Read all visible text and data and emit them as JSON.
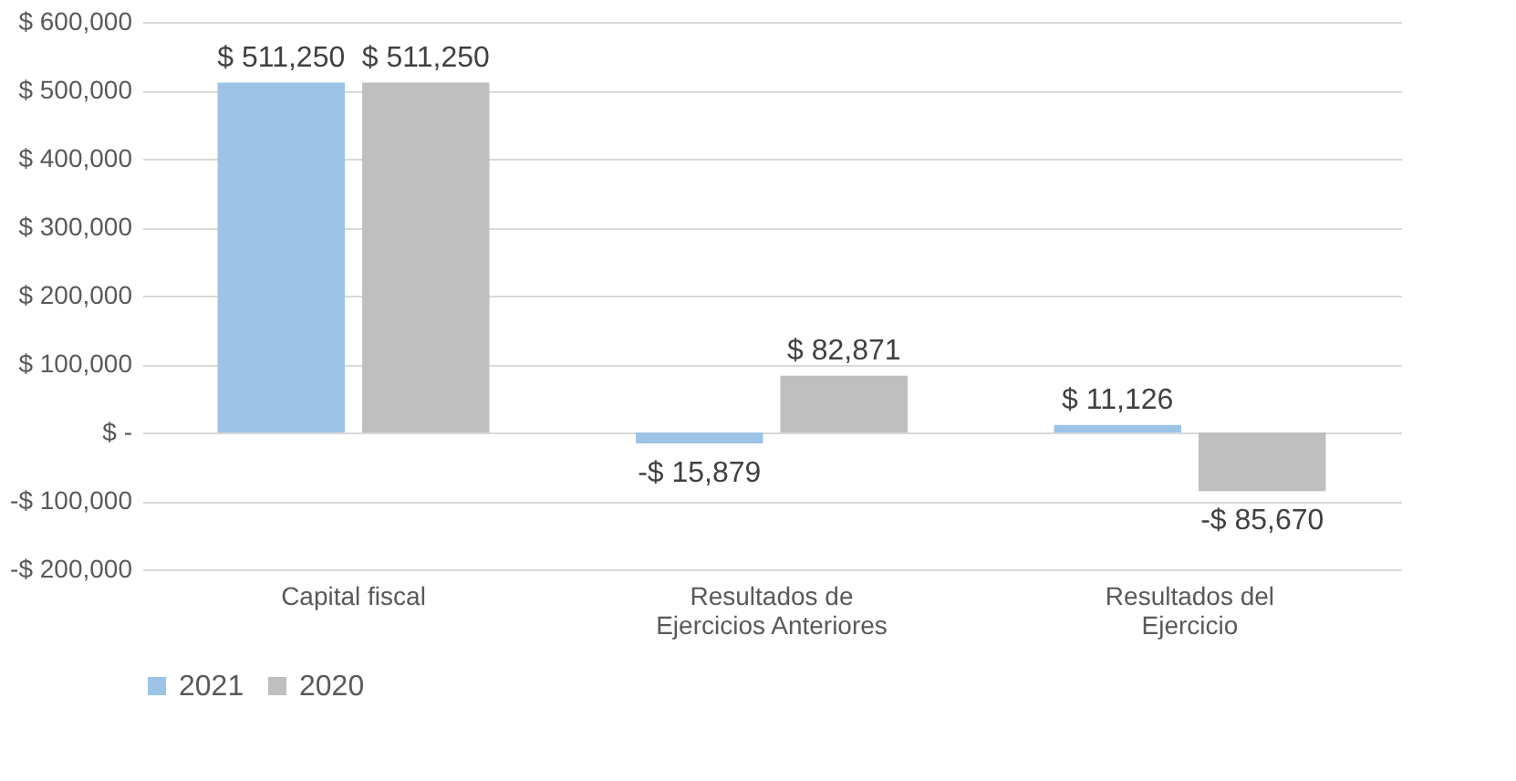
{
  "chart_data": {
    "type": "bar",
    "categories": [
      "Capital fiscal",
      "Resultados de Ejercicios Anteriores",
      "Resultados del Ejercicio"
    ],
    "series": [
      {
        "name": "2021",
        "color": "#9dc3e6",
        "values": [
          511250,
          -15879,
          11126
        ],
        "value_labels": [
          "$ 511,250",
          "-$ 15,879",
          "$ 11,126"
        ]
      },
      {
        "name": "2020",
        "color": "#bfbfbf",
        "values": [
          511250,
          82871,
          -85670
        ],
        "value_labels": [
          "$ 511,250",
          "$ 82,871",
          "-$ 85,670"
        ]
      }
    ],
    "ylim": [
      -200000,
      600000
    ],
    "yticks": [
      {
        "value": -200000,
        "label": "-$ 200,000"
      },
      {
        "value": -100000,
        "label": "-$ 100,000"
      },
      {
        "value": 0,
        "label": "$ -"
      },
      {
        "value": 100000,
        "label": "$ 100,000"
      },
      {
        "value": 200000,
        "label": "$ 200,000"
      },
      {
        "value": 300000,
        "label": "$ 300,000"
      },
      {
        "value": 400000,
        "label": "$ 400,000"
      },
      {
        "value": 500000,
        "label": "$ 500,000"
      },
      {
        "value": 600000,
        "label": "$ 600,000"
      }
    ],
    "grid": "y",
    "legend": "bottom"
  }
}
